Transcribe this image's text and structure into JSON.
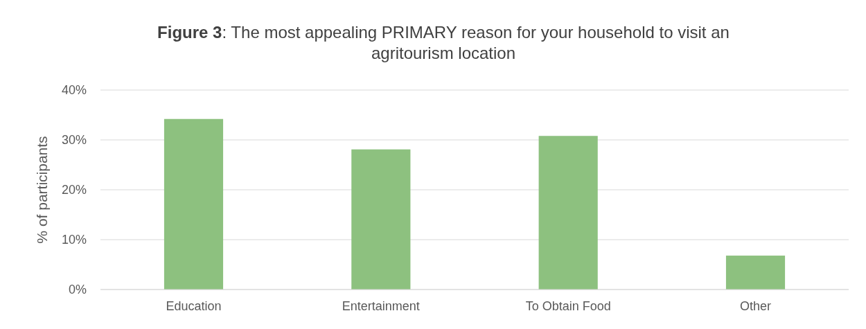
{
  "chart_data": {
    "type": "bar",
    "title": "Figure 3: The most appealing PRIMARY reason for your household to visit an agritourism location",
    "ylabel": "% of participants",
    "categories": [
      "Education",
      "Entertainment",
      "To Obtain Food",
      "Other"
    ],
    "values": [
      34.2,
      28.1,
      30.8,
      6.8
    ],
    "color": "#8dc17f",
    "ylim": [
      0,
      40
    ],
    "yticks": [
      {
        "value": 0,
        "label": "0%"
      },
      {
        "value": 10,
        "label": "10%"
      },
      {
        "value": 20,
        "label": "20%"
      },
      {
        "value": 30,
        "label": "30%"
      },
      {
        "value": 40,
        "label": "40%"
      }
    ],
    "grid": "y"
  }
}
